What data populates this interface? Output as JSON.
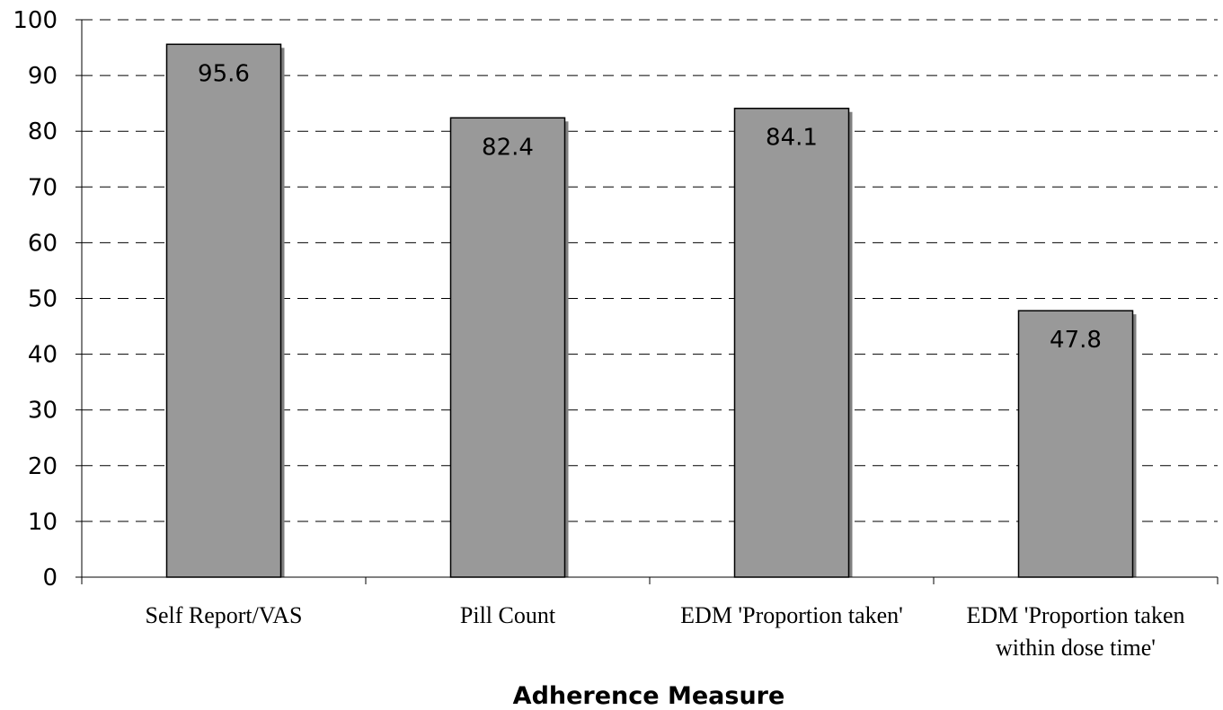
{
  "chart_data": {
    "type": "bar",
    "categories": [
      [
        "Self Report/VAS"
      ],
      [
        "Pill Count"
      ],
      [
        "EDM 'Proportion taken'"
      ],
      [
        "EDM 'Proportion taken",
        "within dose time'"
      ]
    ],
    "values": [
      95.6,
      82.4,
      84.1,
      47.8
    ],
    "data_labels": [
      "95.6",
      "82.4",
      "84.1",
      "47.8"
    ],
    "title": "",
    "xlabel": "Adherence Measure",
    "ylabel": "",
    "ylim": [
      0,
      100
    ],
    "yticks": [
      0,
      10,
      20,
      30,
      40,
      50,
      60,
      70,
      80,
      90,
      100
    ],
    "grid": "horizontal-dashed",
    "bar_color": "#999999",
    "bar_shadow": true
  }
}
